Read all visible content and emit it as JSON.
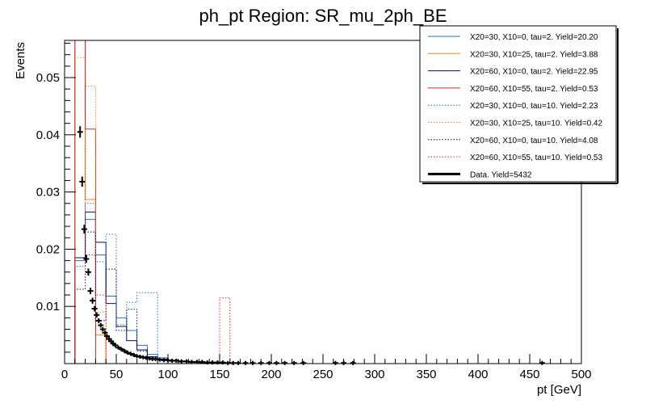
{
  "chart_data": {
    "type": "histogram",
    "title": "ph_pt Region: SR_mu_2ph_BE",
    "xlabel": "pt [GeV]",
    "ylabel": "Events",
    "xlim": [
      0,
      500
    ],
    "ylim": [
      0,
      0.0565
    ],
    "xticks": [
      0,
      50,
      100,
      150,
      200,
      250,
      300,
      350,
      400,
      450,
      500
    ],
    "yticks": [
      0.01,
      0.02,
      0.03,
      0.04,
      0.05
    ],
    "bin_edges": [
      10,
      20,
      30,
      40,
      50,
      60,
      70,
      80,
      90,
      100,
      110,
      120,
      130,
      140,
      150,
      160,
      170,
      180,
      190,
      200
    ],
    "legend": {
      "placement": "top-right"
    },
    "series": [
      {
        "name": "X20=30, X10=0, tau=2. Yield=20.20",
        "color": "#1f77b4",
        "style": "solid",
        "values": [
          0.018,
          0.0252,
          0.019,
          0.0118,
          0.008,
          0.0058,
          0.0032,
          0.0016,
          0.001,
          0.0006,
          0.0004,
          0.0003,
          0.0002,
          0.0001,
          0,
          0,
          0,
          0,
          0
        ]
      },
      {
        "name": "X20=30, X10=25, tau=2. Yield=3.88",
        "color": "#ff7f0e",
        "style": "solid",
        "values": [
          0.0565,
          0.0287,
          0.005,
          0,
          0,
          0,
          0,
          0,
          0,
          0,
          0,
          0,
          0,
          0,
          0,
          0,
          0,
          0,
          0
        ]
      },
      {
        "name": "X20=60, X10=0, tau=2. Yield=22.95",
        "color": "#0a0a6e",
        "style": "solid",
        "values": [
          0.0185,
          0.0265,
          0.0212,
          0.0105,
          0.0065,
          0.004,
          0.0024,
          0.0012,
          0.0008,
          0.0005,
          0.0003,
          0.0002,
          0.0001,
          0,
          0,
          0,
          0,
          0,
          0
        ]
      },
      {
        "name": "X20=60, X10=55, tau=2. Yield=0.53",
        "color": "#d62728",
        "style": "solid",
        "values": [
          0.0565,
          0.041,
          0,
          0,
          0,
          0,
          0,
          0,
          0,
          0,
          0,
          0,
          0,
          0,
          0,
          0,
          0,
          0,
          0
        ]
      },
      {
        "name": "X20=30, X10=0, tau=10. Yield=2.23",
        "color": "#1f77b4",
        "style": "dotted",
        "values": [
          0.017,
          0.028,
          0.0178,
          0.0226,
          0.0068,
          0.0107,
          0.0124,
          0.0124,
          0.0005,
          0.0004,
          0.0003,
          0.0002,
          0.0001,
          0,
          0,
          0,
          0,
          0,
          0
        ]
      },
      {
        "name": "X20=30, X10=25, tau=10. Yield=0.42",
        "color": "#ff7f0e",
        "style": "dotted",
        "values": [
          0.0535,
          0.0485,
          0.009,
          0,
          0,
          0,
          0,
          0,
          0,
          0,
          0,
          0,
          0,
          0,
          0,
          0,
          0,
          0,
          0
        ]
      },
      {
        "name": "X20=60, X10=0, tau=10. Yield=4.08",
        "color": "#0a0a6e",
        "style": "dotted",
        "values": [
          0.013,
          0.023,
          0.0075,
          0.0165,
          0.0058,
          0.0095,
          0.0022,
          0.001,
          0.0006,
          0.0004,
          0.0003,
          0.0002,
          0.0001,
          0,
          0,
          0,
          0,
          0,
          0
        ]
      },
      {
        "name": "X20=60, X10=55, tau=10. Yield=0.53",
        "color": "#d62728",
        "style": "dotted",
        "values": [
          0.0565,
          0.019,
          0.012,
          0,
          0,
          0,
          0,
          0,
          0,
          0,
          0,
          0,
          0,
          0,
          0.0115,
          0,
          0,
          0,
          0
        ]
      }
    ],
    "data_series": {
      "name": "Data. Yield=5432",
      "color": "#000000",
      "points": [
        [
          15,
          0.0405
        ],
        [
          17,
          0.0318
        ],
        [
          19,
          0.0235
        ],
        [
          21,
          0.0183
        ],
        [
          23,
          0.016
        ],
        [
          25,
          0.0127
        ],
        [
          27,
          0.011
        ],
        [
          29,
          0.0096
        ],
        [
          31,
          0.0085
        ],
        [
          33,
          0.0075
        ],
        [
          35,
          0.0067
        ],
        [
          37,
          0.006
        ],
        [
          39,
          0.0054
        ],
        [
          41,
          0.0048
        ],
        [
          43,
          0.0043
        ],
        [
          45,
          0.0039
        ],
        [
          47,
          0.0035
        ],
        [
          49,
          0.0032
        ],
        [
          52,
          0.0028
        ],
        [
          55,
          0.0025
        ],
        [
          58,
          0.0022
        ],
        [
          61,
          0.0019
        ],
        [
          64,
          0.0017
        ],
        [
          67,
          0.0015
        ],
        [
          70,
          0.0013
        ],
        [
          73,
          0.0012
        ],
        [
          76,
          0.0011
        ],
        [
          79,
          0.001
        ],
        [
          82,
          0.0009
        ],
        [
          85,
          0.0008
        ],
        [
          88,
          0.0008
        ],
        [
          92,
          0.0007
        ],
        [
          96,
          0.0006
        ],
        [
          100,
          0.0006
        ],
        [
          104,
          0.0005
        ],
        [
          108,
          0.0005
        ],
        [
          113,
          0.0004
        ],
        [
          118,
          0.0004
        ],
        [
          123,
          0.0003
        ],
        [
          128,
          0.0003
        ],
        [
          133,
          0.0003
        ],
        [
          138,
          0.0002
        ],
        [
          143,
          0.0002
        ],
        [
          148,
          0.0002
        ],
        [
          153,
          0.0002
        ],
        [
          158,
          0.0001
        ],
        [
          163,
          0.0001
        ],
        [
          168,
          0.0001
        ],
        [
          175,
          0.0001
        ],
        [
          182,
          0.0001
        ],
        [
          190,
          0.0001
        ],
        [
          198,
          0.0001
        ],
        [
          205,
          0.0001
        ],
        [
          213,
          0.0001
        ],
        [
          222,
          0.0001
        ],
        [
          231,
          0.0001
        ],
        [
          262,
          0.0001
        ],
        [
          270,
          0.0001
        ],
        [
          279,
          0.0001
        ],
        [
          462,
          0.0001
        ]
      ]
    }
  }
}
